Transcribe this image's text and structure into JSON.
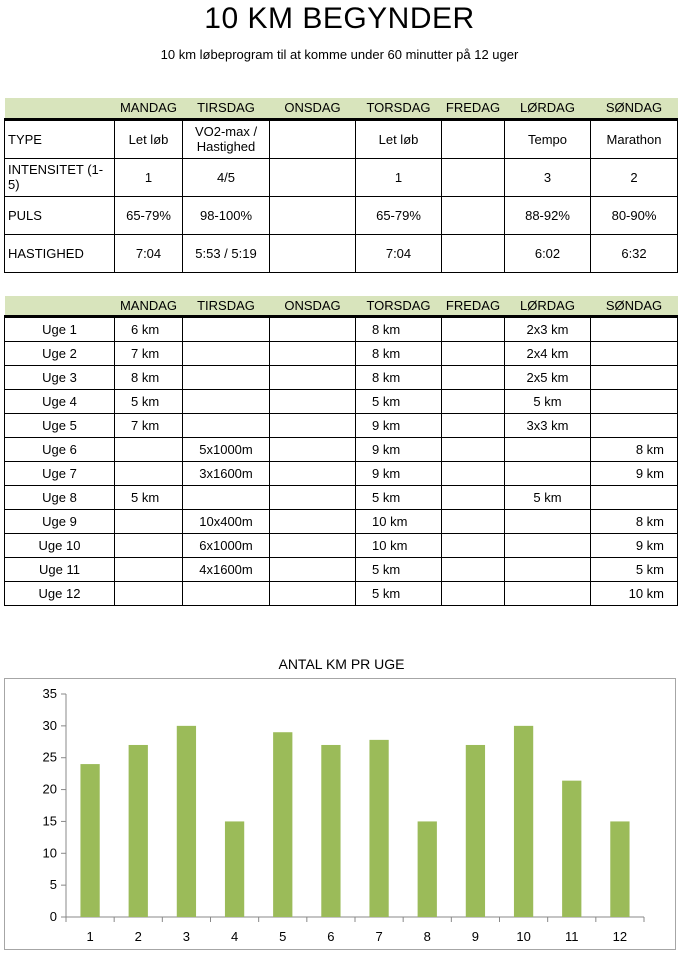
{
  "header": {
    "title": "10 KM BEGYNDER",
    "subtitle": "10 km løbeprogram til at komme under 60 minutter på 12 uger"
  },
  "days": [
    "MANDAG",
    "TIRSDAG",
    "ONSDAG",
    "TORSDAG",
    "FREDAG",
    "LØRDAG",
    "SØNDAG"
  ],
  "info_table": {
    "rows": [
      {
        "label": "TYPE",
        "cells": [
          "Let løb",
          "VO2-max / Hastighed",
          "",
          "Let løb",
          "",
          "Tempo",
          "Marathon"
        ]
      },
      {
        "label": "INTENSITET (1-5)",
        "cells": [
          "1",
          "4/5",
          "",
          "1",
          "",
          "3",
          "2"
        ]
      },
      {
        "label": "PULS",
        "cells": [
          "65-79%",
          "98-100%",
          "",
          "65-79%",
          "",
          "88-92%",
          "80-90%"
        ]
      },
      {
        "label": "HASTIGHED",
        "cells": [
          "7:04",
          "5:53 / 5:19",
          "",
          "7:04",
          "",
          "6:02",
          "6:32"
        ]
      }
    ]
  },
  "week_table": {
    "rows": [
      {
        "label": "Uge 1",
        "cells": [
          "6 km",
          "",
          "",
          "8 km",
          "",
          "2x3 km",
          ""
        ]
      },
      {
        "label": "Uge 2",
        "cells": [
          "7 km",
          "",
          "",
          "8 km",
          "",
          "2x4 km",
          ""
        ]
      },
      {
        "label": "Uge 3",
        "cells": [
          "8 km",
          "",
          "",
          "8 km",
          "",
          "2x5 km",
          ""
        ]
      },
      {
        "label": "Uge 4",
        "cells": [
          "5 km",
          "",
          "",
          "5 km",
          "",
          "5 km",
          ""
        ]
      },
      {
        "label": "Uge 5",
        "cells": [
          "7 km",
          "",
          "",
          "9 km",
          "",
          "3x3 km",
          ""
        ]
      },
      {
        "label": "Uge 6",
        "cells": [
          "",
          "5x1000m",
          "",
          "9 km",
          "",
          "",
          "8 km"
        ]
      },
      {
        "label": "Uge 7",
        "cells": [
          "",
          "3x1600m",
          "",
          "9 km",
          "",
          "",
          "9 km"
        ]
      },
      {
        "label": "Uge 8",
        "cells": [
          "5 km",
          "",
          "",
          "5 km",
          "",
          "5 km",
          ""
        ]
      },
      {
        "label": "Uge 9",
        "cells": [
          "",
          "10x400m",
          "",
          "10 km",
          "",
          "",
          "8 km"
        ]
      },
      {
        "label": "Uge 10",
        "cells": [
          "",
          "6x1000m",
          "",
          "10 km",
          "",
          "",
          "9 km"
        ]
      },
      {
        "label": "Uge 11",
        "cells": [
          "",
          "4x1600m",
          "",
          "5 km",
          "",
          "",
          "5 km"
        ]
      },
      {
        "label": "Uge 12",
        "cells": [
          "",
          "",
          "",
          "5 km",
          "",
          "",
          "10 km"
        ]
      }
    ]
  },
  "chart_data": {
    "type": "bar",
    "title": "ANTAL KM PR UGE",
    "xlabel": "",
    "ylabel": "",
    "categories": [
      "1",
      "2",
      "3",
      "4",
      "5",
      "6",
      "7",
      "8",
      "9",
      "10",
      "11",
      "12"
    ],
    "values": [
      24,
      27,
      30,
      15,
      29,
      27,
      27.8,
      15,
      27,
      30,
      21.4,
      15
    ],
    "ylim": [
      0,
      35
    ],
    "yticks": [
      0,
      5,
      10,
      15,
      20,
      25,
      30,
      35
    ],
    "grid": false,
    "legend": "none",
    "bar_color": "#9bbb59"
  }
}
